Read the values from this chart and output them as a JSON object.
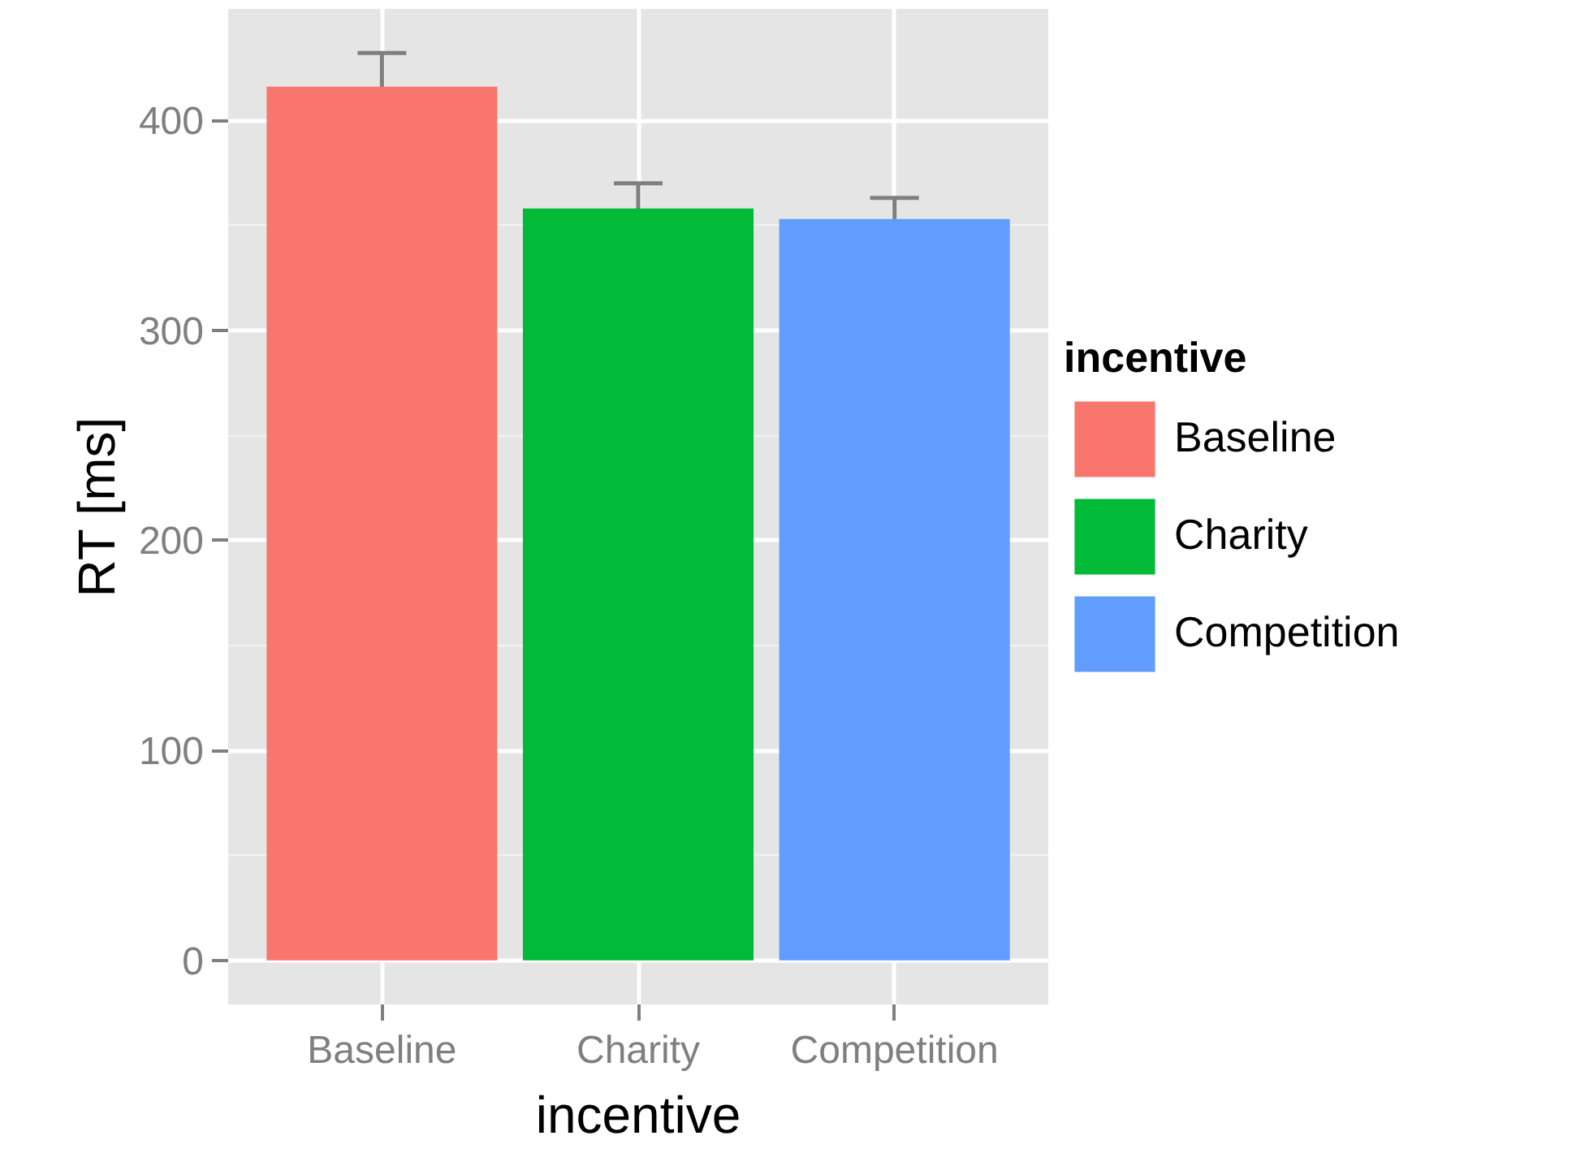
{
  "chart_data": {
    "type": "bar",
    "xlabel": "incentive",
    "ylabel": "RT [ms]",
    "legend_title": "incentive",
    "categories": [
      "Baseline",
      "Charity",
      "Competition"
    ],
    "series": [
      {
        "name": "Baseline",
        "color": "#f8766d",
        "values": [
          416,
          null,
          null
        ],
        "errors": [
          16,
          null,
          null
        ]
      },
      {
        "name": "Charity",
        "color": "#00ba38",
        "values": [
          null,
          358,
          null
        ],
        "errors": [
          null,
          12,
          null
        ]
      },
      {
        "name": "Competition",
        "color": "#619cff",
        "values": [
          null,
          null,
          353
        ],
        "errors": [
          null,
          null,
          10
        ]
      }
    ],
    "ylim": [
      -21,
      453
    ],
    "yticks": [
      0,
      100,
      200,
      300,
      400
    ],
    "grid": true,
    "legend": "right"
  }
}
